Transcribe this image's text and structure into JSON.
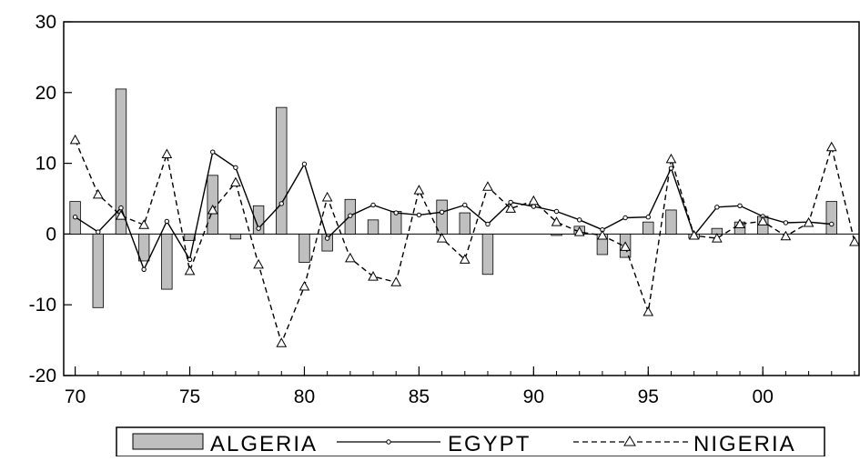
{
  "chart_data": {
    "type": "bar",
    "title": "",
    "xlabel": "",
    "ylabel": "",
    "x": [
      1970,
      1971,
      1972,
      1973,
      1974,
      1975,
      1976,
      1977,
      1978,
      1979,
      1980,
      1981,
      1982,
      1983,
      1984,
      1985,
      1986,
      1987,
      1988,
      1989,
      1990,
      1991,
      1992,
      1993,
      1994,
      1995,
      1996,
      1997,
      1998,
      1999,
      2000,
      2001,
      2002,
      2003,
      2004
    ],
    "xlim": [
      1969.5,
      2004.2
    ],
    "ylim": [
      -20,
      30
    ],
    "y_ticks": [
      -20,
      -10,
      0,
      10,
      20,
      30
    ],
    "y_tick_labels": [
      "-20",
      "-10",
      "0",
      "10",
      "20",
      "30"
    ],
    "x_ticks": [
      1970,
      1975,
      1980,
      1985,
      1990,
      1995,
      2000
    ],
    "x_tick_labels": [
      "70",
      "75",
      "80",
      "85",
      "90",
      "95",
      "00"
    ],
    "grid": false,
    "zero_line": true,
    "legend_position": "bottom",
    "series": [
      {
        "name": "ALGERIA",
        "style": "bar",
        "color": "#bfbfbf",
        "edge_color": "#000000",
        "values": [
          4.6,
          -10.4,
          20.5,
          -3.8,
          -7.8,
          -0.9,
          8.3,
          -0.7,
          4.0,
          17.9,
          -4.0,
          -2.4,
          4.9,
          2.0,
          3.2,
          null,
          4.8,
          3.0,
          -5.7,
          null,
          null,
          -0.2,
          1.1,
          -2.9,
          -3.3,
          1.7,
          3.4,
          -0.6,
          0.8,
          1.7,
          2.5,
          null,
          null,
          4.6,
          null
        ]
      },
      {
        "name": "EGYPT",
        "style": "line",
        "marker": "dot",
        "color": "#000000",
        "values": [
          2.4,
          0.3,
          3.7,
          -5.0,
          1.8,
          -3.6,
          11.6,
          9.4,
          0.8,
          4.3,
          9.9,
          -0.6,
          2.6,
          4.1,
          3.0,
          2.7,
          3.1,
          4.1,
          1.4,
          4.5,
          3.9,
          3.2,
          2.0,
          0.6,
          2.3,
          2.4,
          9.3,
          -0.2,
          3.8,
          4.0,
          2.5,
          1.6,
          1.7,
          1.4,
          null
        ]
      },
      {
        "name": "NIGERIA",
        "style": "dashed-line",
        "marker": "triangle",
        "color": "#000000",
        "values": [
          13.3,
          5.6,
          2.6,
          1.3,
          11.3,
          -5.2,
          3.4,
          7.3,
          -4.3,
          -15.4,
          -7.4,
          5.2,
          -3.4,
          -6.0,
          -6.8,
          6.2,
          -0.6,
          -3.6,
          6.7,
          3.6,
          4.7,
          1.7,
          0.3,
          -0.2,
          -1.8,
          -11.0,
          10.6,
          -0.2,
          -0.6,
          1.4,
          1.8,
          -0.3,
          1.6,
          12.3,
          -1.1
        ]
      }
    ]
  }
}
